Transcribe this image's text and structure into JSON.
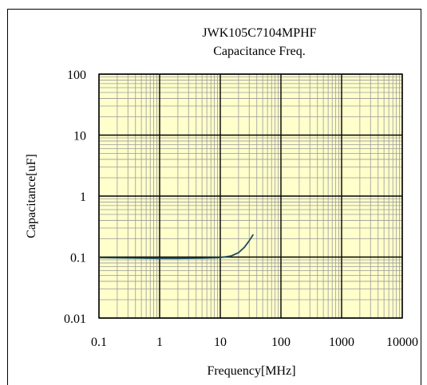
{
  "chart_data": {
    "type": "line",
    "title": "JWK105C7104MPHF",
    "subtitle": "Capacitance Freq.",
    "xlabel": "Frequency[MHz]",
    "ylabel": "Capacitance[uF]",
    "x_scale": "log",
    "y_scale": "log",
    "xlim": [
      0.1,
      10000
    ],
    "ylim": [
      0.01,
      100
    ],
    "x_tick_labels": [
      "0.1",
      "1",
      "10",
      "100",
      "1000",
      "10000"
    ],
    "y_tick_labels": [
      "100",
      "10",
      "1",
      "0.1",
      "0.01"
    ],
    "grid": true,
    "plot_background": "#ffffcc",
    "line_color": "#1f4e5f",
    "series": [
      {
        "x": [
          0.1,
          0.2,
          0.5,
          1,
          2,
          5,
          10,
          15,
          20,
          25,
          30,
          35
        ],
        "y": [
          0.098,
          0.097,
          0.096,
          0.095,
          0.095,
          0.096,
          0.098,
          0.104,
          0.118,
          0.145,
          0.185,
          0.235
        ]
      }
    ]
  }
}
